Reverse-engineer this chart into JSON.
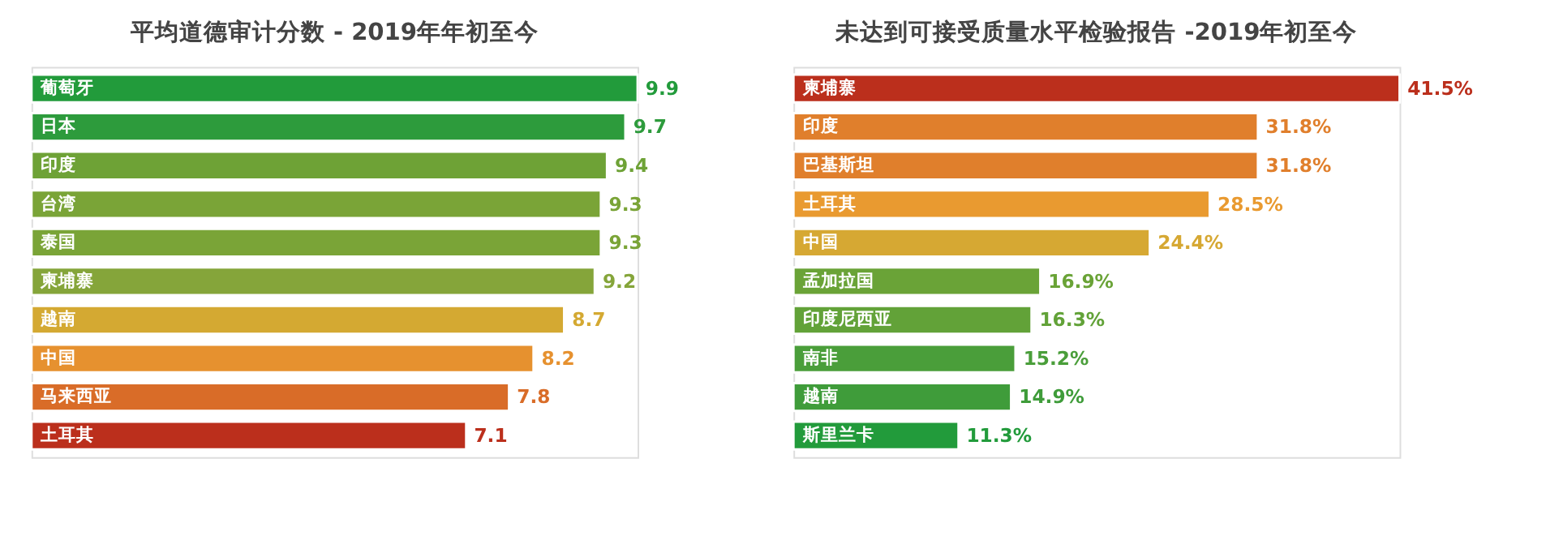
{
  "chart_data": [
    {
      "type": "bar",
      "orientation": "horizontal",
      "title": "平均道德审计分数 -  2019年年初至今",
      "data_labels": true,
      "categories": [
        "葡萄牙",
        "日本",
        "印度",
        "台湾",
        "泰国",
        "柬埔寨",
        "越南",
        "中国",
        "马来西亚",
        "土耳其"
      ],
      "values": [
        9.9,
        9.7,
        9.4,
        9.3,
        9.3,
        9.2,
        8.7,
        8.2,
        7.8,
        7.1
      ],
      "colors": [
        "#229b3b",
        "#2d9b3c",
        "#6ea236",
        "#7aa437",
        "#7aa437",
        "#85a53a",
        "#d4a932",
        "#e6912f",
        "#d96c28",
        "#bb2f1c"
      ]
    },
    {
      "type": "bar",
      "orientation": "horizontal",
      "title": "未达到可接受质量水平检验报告 -2019年初至今",
      "categories": [
        "柬埔寨",
        "印度",
        "巴基斯坦",
        "土耳其",
        "中国",
        "孟加拉国",
        "印度尼西亚",
        "南非",
        "越南",
        "斯里兰卡"
      ],
      "values": [
        41.5,
        31.8,
        31.8,
        28.5,
        24.4,
        16.9,
        16.3,
        15.2,
        14.9,
        11.3
      ],
      "value_labels": [
        "41.5%",
        "31.8%",
        "31.8%",
        "28.5%",
        "24.4%",
        "16.9%",
        "16.3%",
        "15.2%",
        "14.9%",
        "11.3%"
      ],
      "colors": [
        "#bb2f1c",
        "#e07f2c",
        "#e07f2c",
        "#e99a30",
        "#d6a833",
        "#6aa337",
        "#62a238",
        "#4a9e3a",
        "#3f9c3a",
        "#229b3b"
      ]
    }
  ]
}
